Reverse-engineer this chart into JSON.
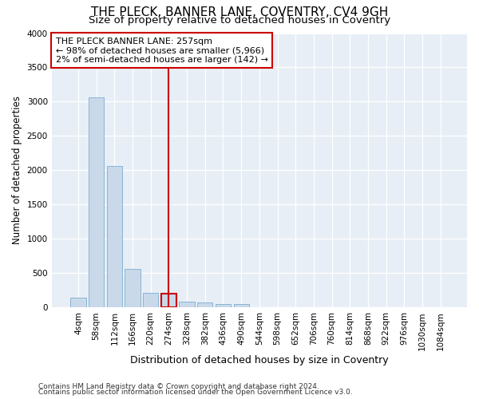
{
  "title": "THE PLECK, BANNER LANE, COVENTRY, CV4 9GH",
  "subtitle": "Size of property relative to detached houses in Coventry",
  "xlabel": "Distribution of detached houses by size in Coventry",
  "ylabel": "Number of detached properties",
  "footnote1": "Contains HM Land Registry data © Crown copyright and database right 2024.",
  "footnote2": "Contains public sector information licensed under the Open Government Licence v3.0.",
  "categories": [
    "4sqm",
    "58sqm",
    "112sqm",
    "166sqm",
    "220sqm",
    "274sqm",
    "328sqm",
    "382sqm",
    "436sqm",
    "490sqm",
    "544sqm",
    "598sqm",
    "652sqm",
    "706sqm",
    "760sqm",
    "814sqm",
    "868sqm",
    "922sqm",
    "976sqm",
    "1030sqm",
    "1084sqm"
  ],
  "values": [
    150,
    3060,
    2060,
    560,
    220,
    200,
    90,
    70,
    55,
    50,
    0,
    0,
    0,
    0,
    0,
    0,
    0,
    0,
    0,
    0,
    0
  ],
  "bar_color": "#c9d9ea",
  "bar_edge_color": "#7aaed0",
  "highlighted_bar_index": 5,
  "highlighted_bar_edge_color": "#cc0000",
  "vline_color": "#cc0000",
  "annotation_text": "THE PLECK BANNER LANE: 257sqm\n← 98% of detached houses are smaller (5,966)\n2% of semi-detached houses are larger (142) →",
  "annotation_box_facecolor": "#ffffff",
  "annotation_box_edgecolor": "#cc0000",
  "ylim": [
    0,
    4000
  ],
  "yticks": [
    0,
    500,
    1000,
    1500,
    2000,
    2500,
    3000,
    3500,
    4000
  ],
  "background_color": "#ffffff",
  "plot_background_color": "#e8eef5",
  "grid_color": "#ffffff",
  "title_fontsize": 11,
  "subtitle_fontsize": 9.5,
  "ylabel_fontsize": 8.5,
  "xlabel_fontsize": 9,
  "tick_fontsize": 7.5,
  "annotation_fontsize": 8,
  "footnote_fontsize": 6.5
}
